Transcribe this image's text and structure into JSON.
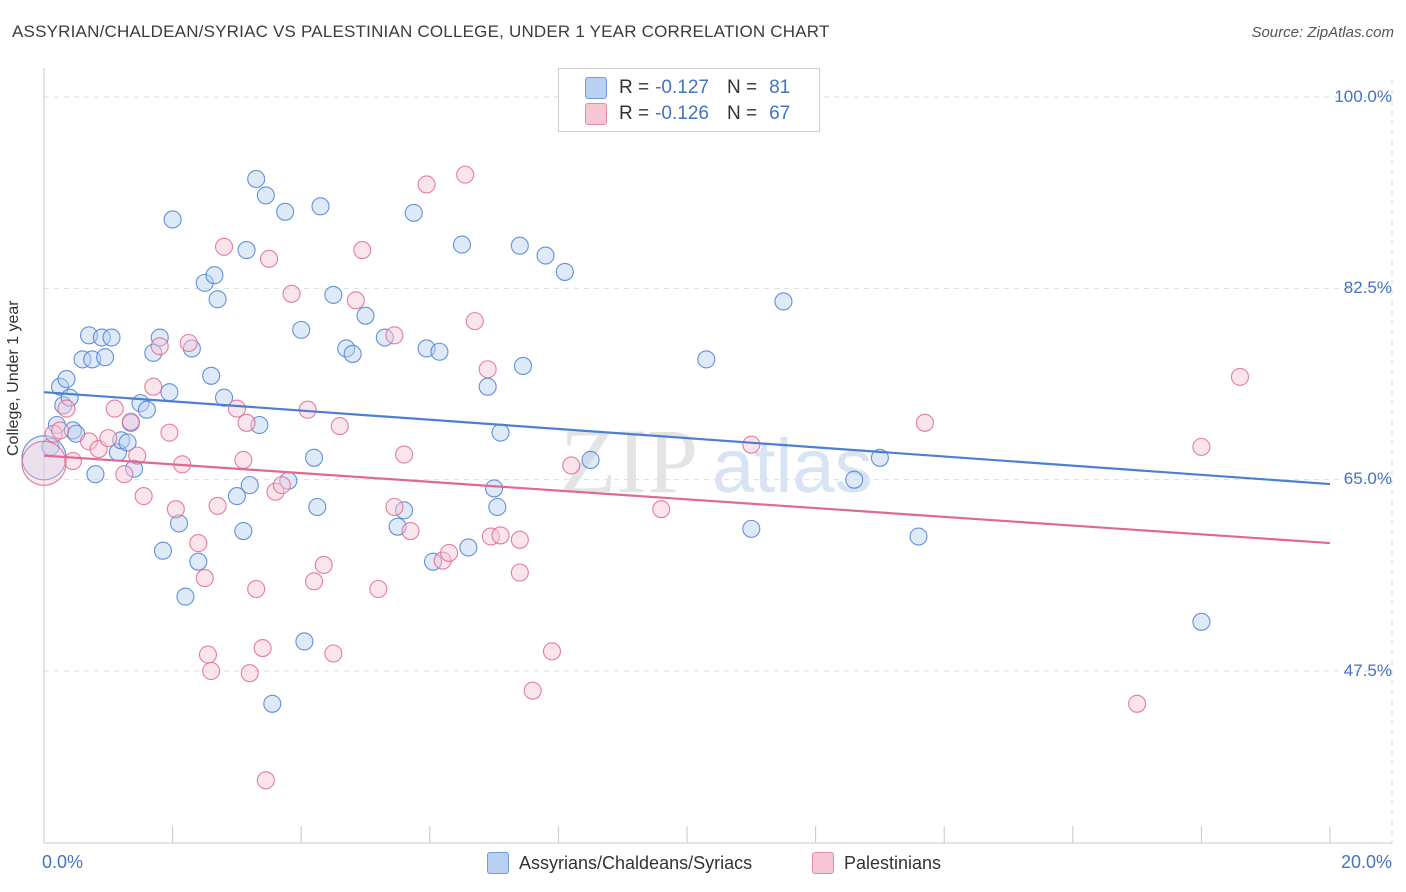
{
  "header": {
    "title": "ASSYRIAN/CHALDEAN/SYRIAC VS PALESTINIAN COLLEGE, UNDER 1 YEAR CORRELATION CHART",
    "source": "Source: ZipAtlas.com"
  },
  "legend_top": {
    "rows": [
      {
        "r_label": "R =",
        "r_value": "-0.127",
        "n_label": "N =",
        "n_value": "81"
      },
      {
        "r_label": "R =",
        "r_value": "-0.126",
        "n_label": "N =",
        "n_value": "67"
      }
    ]
  },
  "watermark": {
    "zip": "ZIP",
    "atlas": "atlas"
  },
  "colors": {
    "blue": "#4a7fd4",
    "blue_fill": "#b9d0f2",
    "pink": "#e0698f",
    "pink_fill": "#f7c6d5",
    "grid": "#dcdcdc",
    "tick": "#4472c4"
  },
  "chart_data": {
    "type": "scatter",
    "title": "ASSYRIAN/CHALDEAN/SYRIAC VS PALESTINIAN COLLEGE, UNDER 1 YEAR CORRELATION CHART",
    "xlabel": "",
    "ylabel": "College, Under 1 year",
    "xlim": [
      0,
      20
    ],
    "ylim": [
      30,
      105
    ],
    "x_tick_labels": {
      "left": "0.0%",
      "right": "20.0%"
    },
    "y_ticks": [
      100,
      82.5,
      65,
      47.5
    ],
    "y_tick_labels": [
      "100.0%",
      "82.5%",
      "65.0%",
      "47.5%"
    ],
    "legend_position": "bottom-center",
    "series": [
      {
        "name": "Assyrians/Chaldeans/Syriacs",
        "r": -0.127,
        "n": 81,
        "trend": {
          "x0": 0,
          "y0": 73.0,
          "x1": 20,
          "y1": 64.6
        },
        "points": [
          [
            0.1,
            68.0
          ],
          [
            0.2,
            70.0
          ],
          [
            0.25,
            73.5
          ],
          [
            0.3,
            71.8
          ],
          [
            0.35,
            74.2
          ],
          [
            0.4,
            72.5
          ],
          [
            0.45,
            69.5
          ],
          [
            0.5,
            69.2
          ],
          [
            0.6,
            76.0
          ],
          [
            0.7,
            78.2
          ],
          [
            0.75,
            76.0
          ],
          [
            0.8,
            65.5
          ],
          [
            0.9,
            78.0
          ],
          [
            0.95,
            76.2
          ],
          [
            1.05,
            78.0
          ],
          [
            1.15,
            67.5
          ],
          [
            1.2,
            68.6
          ],
          [
            1.3,
            68.4
          ],
          [
            1.35,
            70.2
          ],
          [
            1.4,
            66.0
          ],
          [
            1.5,
            72.0
          ],
          [
            1.6,
            71.4
          ],
          [
            1.7,
            76.6
          ],
          [
            1.8,
            78.0
          ],
          [
            1.85,
            58.5
          ],
          [
            1.95,
            73.0
          ],
          [
            2.0,
            88.8
          ],
          [
            2.1,
            61.0
          ],
          [
            2.2,
            54.3
          ],
          [
            2.3,
            77.0
          ],
          [
            2.4,
            57.5
          ],
          [
            2.5,
            83.0
          ],
          [
            2.6,
            74.5
          ],
          [
            2.65,
            83.7
          ],
          [
            2.7,
            81.5
          ],
          [
            2.8,
            72.5
          ],
          [
            3.0,
            63.5
          ],
          [
            3.1,
            60.3
          ],
          [
            3.15,
            86.0
          ],
          [
            3.2,
            64.5
          ],
          [
            3.3,
            92.5
          ],
          [
            3.35,
            70.0
          ],
          [
            3.45,
            91.0
          ],
          [
            3.55,
            44.5
          ],
          [
            3.75,
            89.5
          ],
          [
            3.8,
            64.9
          ],
          [
            4.0,
            78.7
          ],
          [
            4.05,
            50.2
          ],
          [
            4.2,
            67.0
          ],
          [
            4.25,
            62.5
          ],
          [
            4.3,
            90.0
          ],
          [
            4.5,
            81.9
          ],
          [
            4.7,
            77.0
          ],
          [
            4.8,
            76.5
          ],
          [
            5.0,
            80.0
          ],
          [
            5.3,
            78.0
          ],
          [
            5.5,
            60.7
          ],
          [
            5.6,
            62.2
          ],
          [
            5.75,
            89.4
          ],
          [
            5.95,
            77.0
          ],
          [
            6.05,
            57.5
          ],
          [
            6.15,
            76.7
          ],
          [
            6.5,
            86.5
          ],
          [
            6.6,
            58.8
          ],
          [
            6.9,
            73.5
          ],
          [
            7.0,
            64.2
          ],
          [
            7.05,
            62.5
          ],
          [
            7.1,
            69.3
          ],
          [
            7.4,
            86.4
          ],
          [
            7.45,
            75.4
          ],
          [
            7.8,
            85.5
          ],
          [
            8.1,
            84.0
          ],
          [
            8.5,
            66.8
          ],
          [
            10.3,
            76.0
          ],
          [
            11.0,
            60.5
          ],
          [
            11.5,
            81.3
          ],
          [
            12.6,
            65.0
          ],
          [
            13.0,
            67.0
          ],
          [
            13.6,
            59.8
          ],
          [
            18.0,
            52.0
          ],
          [
            0.0,
            67.0
          ]
        ]
      },
      {
        "name": "Palestinians",
        "r": -0.126,
        "n": 67,
        "trend": {
          "x0": 0,
          "y0": 67.2,
          "x1": 20,
          "y1": 59.2
        },
        "points": [
          [
            0.15,
            69.2
          ],
          [
            0.25,
            69.5
          ],
          [
            0.35,
            71.5
          ],
          [
            0.45,
            66.7
          ],
          [
            0.7,
            68.5
          ],
          [
            0.85,
            67.8
          ],
          [
            1.0,
            68.8
          ],
          [
            1.1,
            71.5
          ],
          [
            1.25,
            65.5
          ],
          [
            1.35,
            70.3
          ],
          [
            1.45,
            67.2
          ],
          [
            1.55,
            63.5
          ],
          [
            1.7,
            73.5
          ],
          [
            1.8,
            77.2
          ],
          [
            1.95,
            69.3
          ],
          [
            2.05,
            62.3
          ],
          [
            2.15,
            66.4
          ],
          [
            2.25,
            77.5
          ],
          [
            2.4,
            59.2
          ],
          [
            2.5,
            56.0
          ],
          [
            2.55,
            49.0
          ],
          [
            2.6,
            47.5
          ],
          [
            2.7,
            62.6
          ],
          [
            2.8,
            86.3
          ],
          [
            3.0,
            71.5
          ],
          [
            3.1,
            66.8
          ],
          [
            3.15,
            70.2
          ],
          [
            3.3,
            55.0
          ],
          [
            3.4,
            49.6
          ],
          [
            3.5,
            85.2
          ],
          [
            3.6,
            63.9
          ],
          [
            3.7,
            64.5
          ],
          [
            3.85,
            82.0
          ],
          [
            4.1,
            71.4
          ],
          [
            4.2,
            55.7
          ],
          [
            4.35,
            57.2
          ],
          [
            4.5,
            49.1
          ],
          [
            4.6,
            69.9
          ],
          [
            4.85,
            81.4
          ],
          [
            4.95,
            86.0
          ],
          [
            5.2,
            55.0
          ],
          [
            5.45,
            78.2
          ],
          [
            5.6,
            67.3
          ],
          [
            5.7,
            60.3
          ],
          [
            5.95,
            92.0
          ],
          [
            6.2,
            57.6
          ],
          [
            6.3,
            58.3
          ],
          [
            6.55,
            92.9
          ],
          [
            6.7,
            79.5
          ],
          [
            6.9,
            75.1
          ],
          [
            6.95,
            59.8
          ],
          [
            7.1,
            59.9
          ],
          [
            7.4,
            56.5
          ],
          [
            7.6,
            45.7
          ],
          [
            7.9,
            49.3
          ],
          [
            8.2,
            66.3
          ],
          [
            9.6,
            62.3
          ],
          [
            11.0,
            68.2
          ],
          [
            13.7,
            70.2
          ],
          [
            17.0,
            44.5
          ],
          [
            18.0,
            68.0
          ],
          [
            18.6,
            74.4
          ],
          [
            3.2,
            47.3
          ],
          [
            5.45,
            62.5
          ],
          [
            7.4,
            59.5
          ],
          [
            3.45,
            37.5
          ],
          [
            0.0,
            66.5
          ]
        ]
      }
    ]
  },
  "legend_bottom": {
    "items": [
      "Assyrians/Chaldeans/Syriacs",
      "Palestinians"
    ]
  }
}
